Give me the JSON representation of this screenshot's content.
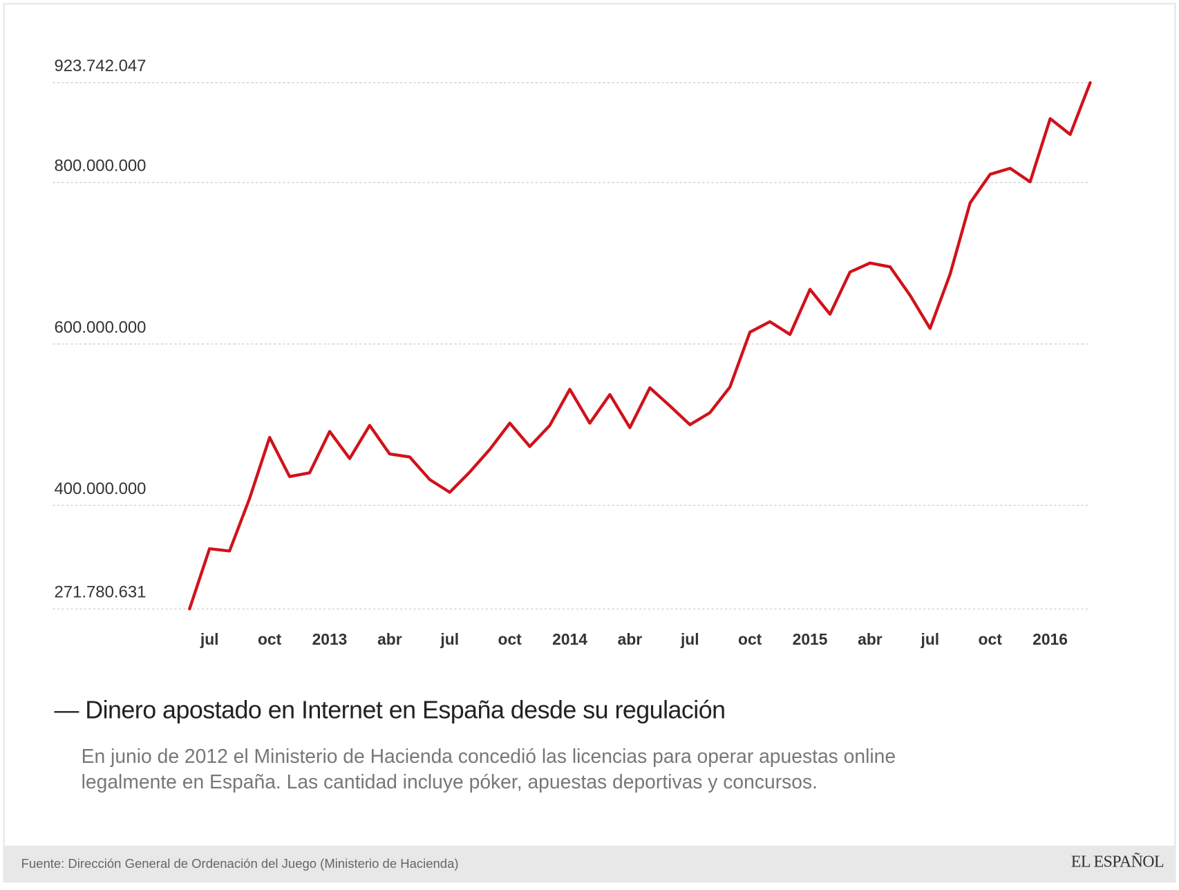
{
  "chart_data": {
    "type": "line",
    "title": "— Dinero apostado en Internet en España desde su regulación",
    "subtitle": [
      "En junio de 2012 el Ministerio de Hacienda concedió las licencias para operar apuestas online",
      "legalmente en España. Las cantidad incluye póker, apuestas deportivas y concursos."
    ],
    "source": "Fuente: Dirección General de Ordenación del Juego (Ministerio de Hacienda)",
    "brand": "EL ESPAÑOL",
    "categories": [
      null,
      "jul",
      null,
      null,
      "oct",
      null,
      null,
      "2013",
      null,
      null,
      "abr",
      null,
      null,
      "jul",
      null,
      null,
      "oct",
      null,
      null,
      "2014",
      null,
      null,
      "abr",
      null,
      null,
      "jul",
      null,
      null,
      "oct",
      null,
      null,
      "2015",
      null,
      null,
      "abr",
      null,
      null,
      "jul",
      null,
      null,
      "oct",
      null,
      null,
      "2016",
      null,
      null
    ],
    "values": [
      271780631,
      346300000,
      343500000,
      408700000,
      484200000,
      435700000,
      440400000,
      491600000,
      458100000,
      499100000,
      463700000,
      460000000,
      432000000,
      416200000,
      441300000,
      469300000,
      501900000,
      473000000,
      499100000,
      543800000,
      501900000,
      537300000,
      496300000,
      545700000,
      523300000,
      500000000,
      514900000,
      546600000,
      614600000,
      627600000,
      611800000,
      667700000,
      636900000,
      689100000,
      700300000,
      695600000,
      660300000,
      619300000,
      686300000,
      774800000,
      810200000,
      817700000,
      800900000,
      879200000,
      859600000,
      923742047
    ],
    "color": "#d0121b",
    "ylim": [
      271780631,
      923742047
    ],
    "yticks": [
      {
        "value": 271780631,
        "label": "271.780.631"
      },
      {
        "value": 400000000,
        "label": "400.000.000"
      },
      {
        "value": 600000000,
        "label": "600.000.000"
      },
      {
        "value": 800000000,
        "label": "800.000.000"
      },
      {
        "value": 923742047,
        "label": "923.742.047"
      }
    ],
    "grid": true
  }
}
